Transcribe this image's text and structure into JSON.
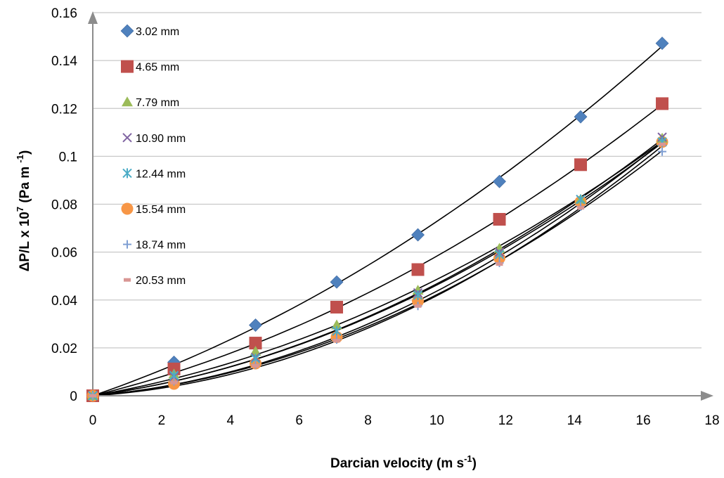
{
  "chart_data": {
    "type": "scatter",
    "xlabel": {
      "main": "Darcian velocity (m s",
      "sup": "-1",
      "tail": ")"
    },
    "ylabel": {
      "main": "ΔP/L x 10",
      "sup1": "7",
      "mid": " (Pa m ",
      "sup2": "-1",
      "tail": ")"
    },
    "xlim": [
      0,
      18
    ],
    "ylim": [
      0,
      0.16
    ],
    "xticks": [
      "0",
      "2",
      "4",
      "6",
      "8",
      "10",
      "12",
      "14",
      "16",
      "18"
    ],
    "yticks": [
      "0",
      "0.02",
      "0.04",
      "0.06",
      "0.08",
      "0.1",
      "0.12",
      "0.14",
      "0.16"
    ],
    "grid": "horizontal",
    "legend_position": "top-left",
    "x": [
      0,
      2.36,
      4.73,
      7.09,
      9.45,
      11.82,
      14.18,
      16.55
    ],
    "series": [
      {
        "name": "3.02 mm",
        "marker": "diamond",
        "color": "#4f81bd",
        "values": [
          0,
          0.014,
          0.0295,
          0.0475,
          0.0672,
          0.0895,
          0.1165,
          0.1472
        ]
      },
      {
        "name": "4.65 mm",
        "marker": "square",
        "color": "#c0504d",
        "values": [
          0,
          0.0112,
          0.022,
          0.037,
          0.0527,
          0.0737,
          0.0965,
          0.122
        ]
      },
      {
        "name": "7.79 mm",
        "marker": "triangle",
        "color": "#9bbb59",
        "values": [
          0,
          0.009,
          0.0185,
          0.0295,
          0.044,
          0.0615,
          0.082,
          0.1075
        ]
      },
      {
        "name": "10.90 mm",
        "marker": "x",
        "color": "#8064a2",
        "values": [
          0,
          0.008,
          0.016,
          0.027,
          0.043,
          0.06,
          0.082,
          0.108
        ]
      },
      {
        "name": "12.44 mm",
        "marker": "star",
        "color": "#4bacc6",
        "values": [
          0,
          0.0085,
          0.0155,
          0.027,
          0.042,
          0.059,
          0.082,
          0.106
        ]
      },
      {
        "name": "15.54 mm",
        "marker": "circle",
        "color": "#f79646",
        "values": [
          0,
          0.005,
          0.0135,
          0.0245,
          0.0395,
          0.0575,
          0.081,
          0.106
        ]
      },
      {
        "name": "18.74 mm",
        "marker": "plus",
        "color": "#7f9fd3",
        "values": [
          0,
          0.006,
          0.013,
          0.0235,
          0.0375,
          0.0555,
          0.079,
          0.102
        ]
      },
      {
        "name": "20.53 mm",
        "marker": "dash",
        "color": "#d99694",
        "values": [
          0,
          0.0055,
          0.0125,
          0.023,
          0.0375,
          0.055,
          0.0785,
          0.105
        ]
      }
    ],
    "trendline_color": "#000000",
    "axis_color": "#8c8c8c",
    "grid_color": "#c8c8c8"
  }
}
